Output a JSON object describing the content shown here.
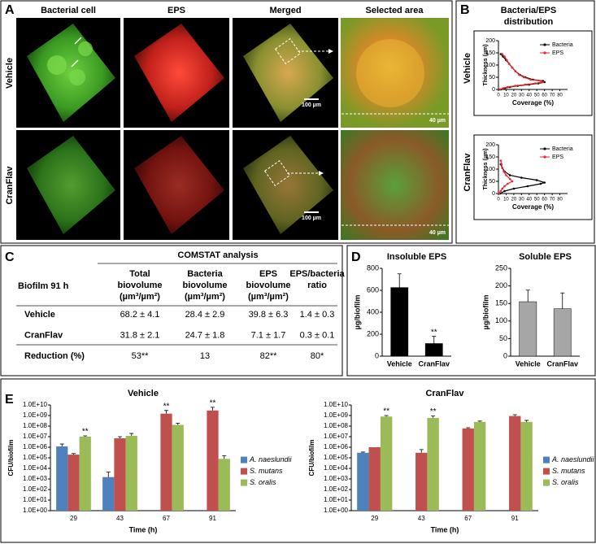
{
  "panels": {
    "A": {
      "letter": "A",
      "columns": [
        "Bacterial cell",
        "EPS",
        "Merged",
        "Selected area"
      ],
      "rows": [
        "Vehicle",
        "CranFlav"
      ],
      "scale_bars": [
        "100 µm",
        "40 µm"
      ]
    },
    "B": {
      "letter": "B",
      "title": [
        "Bacteria/EPS",
        "distribution"
      ]
    },
    "C": {
      "letter": "C",
      "table": {
        "title": "COMSTAT analysis",
        "header": [
          [
            "Biofilm 91 h"
          ],
          [
            "Total",
            "biovolume",
            "(µm³/µm²)"
          ],
          [
            "Bacteria",
            "biovolume",
            "(µm³/µm²)"
          ],
          [
            "EPS",
            "biovolume",
            "(µm³/µm²)"
          ],
          [
            "EPS/bacteria",
            "ratio"
          ]
        ],
        "rows": [
          [
            "Vehicle",
            "68.2 ± 4.1",
            "28.4 ± 2.9",
            "39.8 ± 6.3",
            "1.4 ± 0.3"
          ],
          [
            "CranFlav",
            "31.8 ± 2.1",
            "24.7 ± 1.8",
            "7.1 ± 1.7",
            "0.3 ± 0.1"
          ],
          [
            "Reduction (%)",
            "53**",
            "13",
            "82**",
            "80*"
          ]
        ]
      }
    },
    "D": {
      "letter": "D"
    },
    "E": {
      "letter": "E"
    }
  },
  "chart_data": [
    {
      "type": "line",
      "title": "Vehicle",
      "xlabel": "Coverage (%)",
      "ylabel": "Thickness (µm)",
      "xlim": [
        0,
        90
      ],
      "xticks": [
        0,
        10,
        20,
        30,
        40,
        50,
        60,
        70,
        80
      ],
      "ylim": [
        0,
        200
      ],
      "yticks": [
        0,
        50,
        100,
        150,
        200
      ],
      "legend": "upper right",
      "series": [
        {
          "name": "Bacteria",
          "color": "#000000",
          "x": [
            3,
            8,
            15,
            25,
            40,
            52,
            60,
            58,
            45,
            35,
            28,
            22,
            18,
            14,
            10,
            6,
            3
          ],
          "values": [
            0,
            5,
            10,
            15,
            20,
            25,
            30,
            35,
            40,
            50,
            60,
            75,
            90,
            105,
            120,
            135,
            145
          ]
        },
        {
          "name": "EPS",
          "color": "#e8262b",
          "x": [
            2,
            6,
            12,
            22,
            35,
            48,
            58,
            55,
            42,
            33,
            27,
            22,
            18,
            14,
            11,
            8,
            5
          ],
          "values": [
            0,
            5,
            10,
            15,
            20,
            25,
            30,
            35,
            40,
            50,
            60,
            75,
            90,
            105,
            120,
            135,
            145
          ]
        }
      ]
    },
    {
      "type": "line",
      "title": "CranFlav",
      "xlabel": "Coverage (%)",
      "ylabel": "Thickness (µm)",
      "xlim": [
        0,
        90
      ],
      "xticks": [
        0,
        10,
        20,
        30,
        40,
        50,
        60,
        70,
        80
      ],
      "ylim": [
        0,
        200
      ],
      "yticks": [
        0,
        50,
        100,
        150,
        200
      ],
      "legend": "upper right",
      "series": [
        {
          "name": "Bacteria",
          "color": "#000000",
          "x": [
            2,
            8,
            20,
            38,
            55,
            60,
            50,
            30,
            15,
            8,
            5,
            3
          ],
          "values": [
            0,
            10,
            20,
            30,
            40,
            45,
            55,
            65,
            75,
            90,
            105,
            120
          ]
        },
        {
          "name": "EPS",
          "color": "#e8262b",
          "x": [
            1,
            3,
            5,
            8,
            12,
            18,
            15,
            10,
            7,
            5,
            4,
            3
          ],
          "values": [
            0,
            10,
            20,
            30,
            40,
            50,
            60,
            75,
            90,
            105,
            120,
            135
          ]
        }
      ]
    },
    {
      "type": "bar",
      "title": "Insoluble EPS",
      "ylabel": "µg/biofilm",
      "categories": [
        "Vehicle",
        "CranFlav"
      ],
      "values": [
        625,
        115
      ],
      "errors": [
        125,
        65
      ],
      "color": "#000000",
      "ylim": [
        0,
        800
      ],
      "yticks": [
        0,
        200,
        400,
        600,
        800
      ],
      "annotations": [
        {
          "text": "**",
          "category": 1
        }
      ]
    },
    {
      "type": "bar",
      "title": "Soluble EPS",
      "ylabel": "µg/biofilm",
      "categories": [
        "Vehicle",
        "CranFlav"
      ],
      "values": [
        155,
        135
      ],
      "errors": [
        33,
        45
      ],
      "color": "#a6a6a6",
      "ylim": [
        0,
        250
      ],
      "yticks": [
        0,
        50,
        100,
        150,
        200,
        250
      ]
    },
    {
      "type": "bar",
      "title": "Vehicle",
      "xlabel": "Time (h)",
      "ylabel": "CFU/biofilm",
      "categories": [
        "29",
        "43",
        "67",
        "91"
      ],
      "yscale": "log",
      "ylim": [
        1,
        10000000000
      ],
      "legend": "right",
      "yticks": [
        {
          "value": 1,
          "label": "1.0E+00"
        },
        {
          "value": 10,
          "label": "1.0E+01"
        },
        {
          "value": 100,
          "label": "1.0E+02"
        },
        {
          "value": 1000,
          "label": "1.0E+03"
        },
        {
          "value": 10000,
          "label": "1.0E+04"
        },
        {
          "value": 100000,
          "label": "1.0E+05"
        },
        {
          "value": 1000000,
          "label": "1.0E+06"
        },
        {
          "value": 10000000,
          "label": "1.0E+07"
        },
        {
          "value": 100000000,
          "label": "1.0E+08"
        },
        {
          "value": 1000000000,
          "label": "1.0E+09"
        },
        {
          "value": 10000000000,
          "label": "1.0E+10"
        }
      ],
      "series": [
        {
          "name": "A. naeslundii",
          "color": "#4f81bd",
          "values": [
            1200000,
            1500,
            null,
            null
          ],
          "errors": [
            800000,
            3000,
            null,
            null
          ]
        },
        {
          "name": "S. mutans",
          "color": "#c0504d",
          "values": [
            200000,
            7000000,
            1500000000,
            3000000000
          ],
          "errors": [
            50000,
            3000000,
            1500000000,
            3000000000
          ]
        },
        {
          "name": "S. oralis",
          "color": "#9bbb59",
          "values": [
            10000000,
            12000000,
            130000000,
            80000
          ],
          "errors": [
            2000000,
            8000000,
            60000000,
            80000
          ]
        }
      ],
      "annotations": [
        {
          "text": "**",
          "category": 0,
          "series": 2
        },
        {
          "text": "**",
          "category": 2,
          "series": 1
        },
        {
          "text": "**",
          "category": 3,
          "series": 1
        }
      ]
    },
    {
      "type": "bar",
      "title": "CranFlav",
      "xlabel": "Time (h)",
      "ylabel": "CFU/biofilm",
      "categories": [
        "29",
        "43",
        "67",
        "91"
      ],
      "yscale": "log",
      "ylim": [
        1,
        10000000000
      ],
      "legend": "right",
      "yticks": [
        {
          "value": 1,
          "label": "1.0E+00"
        },
        {
          "value": 10,
          "label": "1.0E+01"
        },
        {
          "value": 100,
          "label": "1.0E+02"
        },
        {
          "value": 1000,
          "label": "1.0E+03"
        },
        {
          "value": 10000,
          "label": "1.0E+04"
        },
        {
          "value": 100000,
          "label": "1.0E+05"
        },
        {
          "value": 1000000,
          "label": "1.0E+06"
        },
        {
          "value": 10000000,
          "label": "1.0E+07"
        },
        {
          "value": 100000000,
          "label": "1.0E+08"
        },
        {
          "value": 1000000000,
          "label": "1.0E+09"
        },
        {
          "value": 10000000000,
          "label": "1.0E+10"
        }
      ],
      "series": [
        {
          "name": "A. naeslundii",
          "color": "#4f81bd",
          "values": [
            300000,
            null,
            null,
            null
          ],
          "errors": [
            50000,
            null,
            null,
            null
          ]
        },
        {
          "name": "S. mutans",
          "color": "#c0504d",
          "values": [
            1000000,
            300000,
            60000000,
            900000000
          ],
          "errors": [
            null,
            300000,
            10000000,
            300000000
          ]
        },
        {
          "name": "S. oralis",
          "color": "#9bbb59",
          "values": [
            800000000,
            600000000,
            250000000,
            250000000
          ],
          "errors": [
            200000000,
            300000000,
            50000000,
            100000000
          ]
        }
      ],
      "annotations": [
        {
          "text": "**",
          "category": 0,
          "series": 2
        },
        {
          "text": "**",
          "category": 1,
          "series": 2
        }
      ]
    }
  ]
}
